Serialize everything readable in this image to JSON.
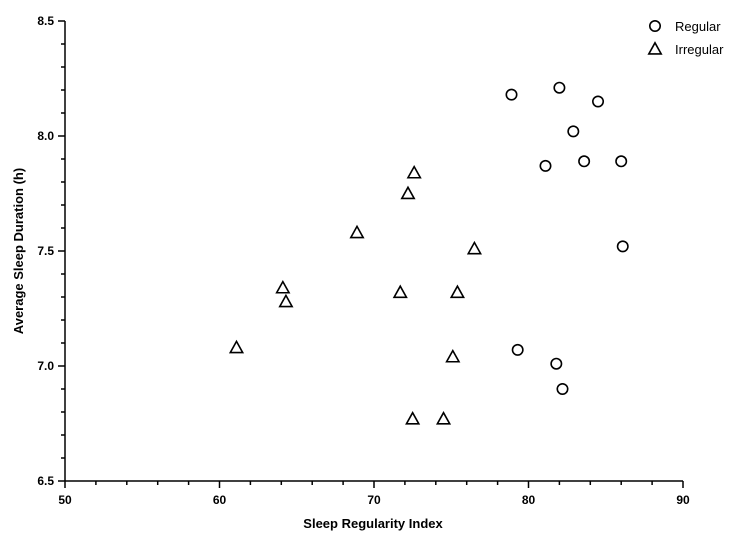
{
  "chart_data": {
    "type": "scatter",
    "xlabel": "Sleep Regularity Index",
    "ylabel": "Average Sleep Duration (h)",
    "xlim": [
      50,
      90
    ],
    "ylim": [
      6.5,
      8.5
    ],
    "x_ticks": [
      50,
      60,
      70,
      80,
      90
    ],
    "y_ticks": [
      "6.5",
      "7.0",
      "7.5",
      "8.0",
      "8.5"
    ],
    "grid": false,
    "legend_position": "top-right",
    "series": [
      {
        "name": "Regular",
        "marker": "circle",
        "points": [
          {
            "x": 78.9,
            "y": 8.18
          },
          {
            "x": 82.0,
            "y": 8.21
          },
          {
            "x": 84.5,
            "y": 8.15
          },
          {
            "x": 82.9,
            "y": 8.02
          },
          {
            "x": 81.1,
            "y": 7.87
          },
          {
            "x": 83.6,
            "y": 7.89
          },
          {
            "x": 86.0,
            "y": 7.89
          },
          {
            "x": 86.1,
            "y": 7.52
          },
          {
            "x": 79.3,
            "y": 7.07
          },
          {
            "x": 81.8,
            "y": 7.01
          },
          {
            "x": 82.2,
            "y": 6.9
          }
        ]
      },
      {
        "name": "Irregular",
        "marker": "triangle",
        "points": [
          {
            "x": 72.6,
            "y": 7.84
          },
          {
            "x": 72.2,
            "y": 7.75
          },
          {
            "x": 68.9,
            "y": 7.58
          },
          {
            "x": 76.5,
            "y": 7.51
          },
          {
            "x": 64.1,
            "y": 7.34
          },
          {
            "x": 64.3,
            "y": 7.28
          },
          {
            "x": 71.7,
            "y": 7.32
          },
          {
            "x": 75.4,
            "y": 7.32
          },
          {
            "x": 61.1,
            "y": 7.08
          },
          {
            "x": 75.1,
            "y": 7.04
          },
          {
            "x": 72.5,
            "y": 6.77
          },
          {
            "x": 74.5,
            "y": 6.77
          }
        ]
      }
    ]
  }
}
